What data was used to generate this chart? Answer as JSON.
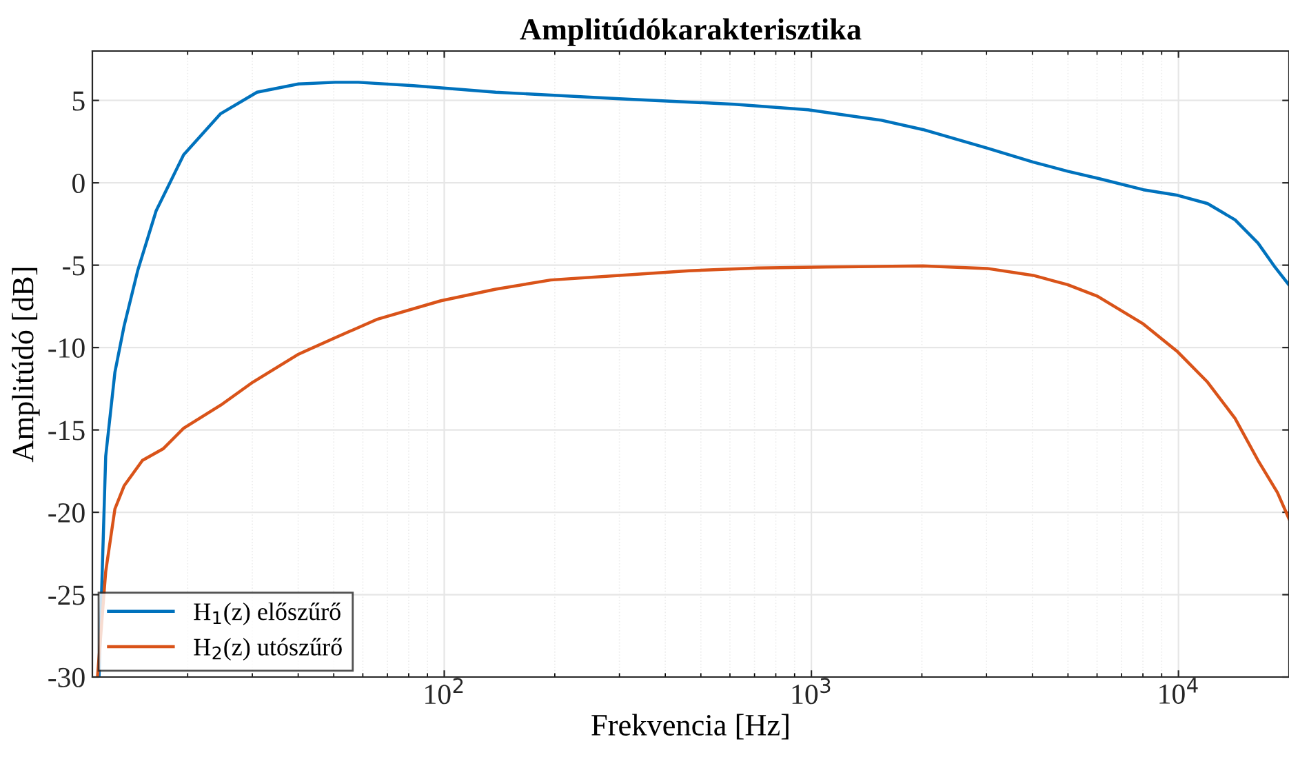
{
  "chart_data": {
    "type": "line",
    "title": "Amplitúdókarakterisztika",
    "xlabel": "Frekvencia [Hz]",
    "ylabel": "Amplitúdó [dB]",
    "log": "x",
    "xlim": [
      11,
      20000
    ],
    "ylim": [
      -30,
      8
    ],
    "xticks": [
      {
        "value": 100,
        "label": "10$^{2}$"
      },
      {
        "value": 1000,
        "label": "10$^{3}$"
      },
      {
        "value": 10000,
        "label": "10$^{4}$"
      }
    ],
    "yticks": [
      -30,
      -25,
      -20,
      -15,
      -10,
      -5,
      0,
      5
    ],
    "grid": true,
    "legend": "bottom left",
    "line_style": "solid",
    "marker": "none",
    "series": [
      {
        "name": "H$_{1}$(z) előszűrő",
        "color": "#0072bd",
        "x": [
          11.47,
          11.96,
          12.67,
          13.42,
          14.63,
          16.41,
          19.5,
          24.6,
          30.9,
          40.1,
          50.5,
          58.3,
          82.4,
          138,
          300,
          617,
          980,
          1550,
          2014,
          3013,
          4020,
          4987,
          6014,
          8022,
          9950,
          12000,
          14260,
          16470,
          18220,
          20000
        ],
        "values": [
          -30,
          -16.6,
          -11.5,
          -8.7,
          -5.3,
          -1.7,
          1.7,
          4.2,
          5.5,
          6.0,
          6.1,
          6.1,
          5.9,
          5.5,
          5.1,
          4.77,
          4.43,
          3.8,
          3.23,
          2.1,
          1.26,
          0.7,
          0.28,
          -0.42,
          -0.76,
          -1.26,
          -2.25,
          -3.66,
          -5.05,
          -6.2
        ]
      },
      {
        "name": "H$_{2}$(z) utószűrő",
        "color": "#d95319",
        "x": [
          11.36,
          11.96,
          12.67,
          13.42,
          15.06,
          17.14,
          19.5,
          24.6,
          30.1,
          40.1,
          50.5,
          65.4,
          97.9,
          138,
          195,
          300,
          464,
          714,
          1100,
          2014,
          3013,
          4020,
          4987,
          6014,
          8022,
          9950,
          12000,
          14260,
          16470,
          18600,
          20000
        ],
        "values": [
          -30,
          -23.6,
          -19.8,
          -18.4,
          -16.85,
          -16.15,
          -14.9,
          -13.5,
          -12.1,
          -10.4,
          -9.4,
          -8.3,
          -7.16,
          -6.46,
          -5.9,
          -5.62,
          -5.34,
          -5.17,
          -5.11,
          -5.05,
          -5.2,
          -5.62,
          -6.18,
          -6.88,
          -8.57,
          -10.26,
          -12.1,
          -14.3,
          -16.85,
          -18.8,
          -20.4
        ]
      }
    ]
  }
}
